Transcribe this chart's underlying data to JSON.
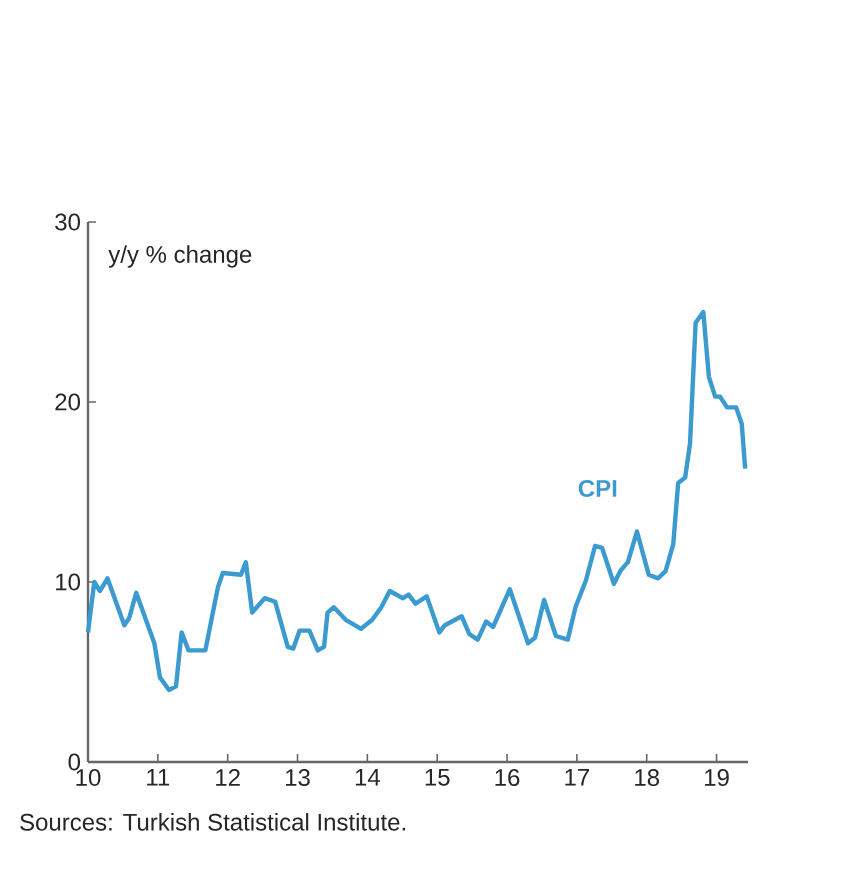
{
  "chart_data": {
    "type": "line",
    "ylabel": "y/y % change",
    "x": [
      2010.0,
      2010.09,
      2010.17,
      2010.28,
      2010.52,
      2010.59,
      2010.69,
      2010.95,
      2011.03,
      2011.16,
      2011.26,
      2011.34,
      2011.44,
      2011.68,
      2011.86,
      2011.93,
      2012.19,
      2012.26,
      2012.35,
      2012.53,
      2012.68,
      2012.86,
      2012.94,
      2013.03,
      2013.17,
      2013.29,
      2013.38,
      2013.43,
      2013.52,
      2013.69,
      2013.91,
      2014.07,
      2014.2,
      2014.32,
      2014.51,
      2014.59,
      2014.69,
      2014.85,
      2015.03,
      2015.11,
      2015.35,
      2015.46,
      2015.58,
      2015.7,
      2015.8,
      2016.04,
      2016.3,
      2016.4,
      2016.53,
      2016.7,
      2016.87,
      2016.98,
      2017.13,
      2017.26,
      2017.36,
      2017.53,
      2017.62,
      2017.73,
      2017.86,
      2018.03,
      2018.16,
      2018.27,
      2018.38,
      2018.45,
      2018.55,
      2018.62,
      2018.7,
      2018.81,
      2018.89,
      2018.98,
      2019.05,
      2019.15,
      2019.28,
      2019.36,
      2019.41
    ],
    "series": [
      {
        "name": "CPI",
        "color": "#3b9ad0",
        "values": [
          7.2,
          10.0,
          9.5,
          10.2,
          7.6,
          8.0,
          9.4,
          6.6,
          4.7,
          4.0,
          4.2,
          7.2,
          6.2,
          6.2,
          9.7,
          10.5,
          10.4,
          11.1,
          8.3,
          9.1,
          8.9,
          6.4,
          6.3,
          7.3,
          7.3,
          6.2,
          6.4,
          8.3,
          8.6,
          7.9,
          7.4,
          7.9,
          8.6,
          9.5,
          9.1,
          9.3,
          8.8,
          9.2,
          7.2,
          7.6,
          8.1,
          7.1,
          6.8,
          7.8,
          7.5,
          9.6,
          6.6,
          6.9,
          9.0,
          7.0,
          6.8,
          8.6,
          10.1,
          12.0,
          11.9,
          9.9,
          10.6,
          11.1,
          12.8,
          10.4,
          10.2,
          10.6,
          12.1,
          15.5,
          15.8,
          17.7,
          24.4,
          25.0,
          21.4,
          20.3,
          20.3,
          19.7,
          19.7,
          18.8,
          16.3
        ]
      }
    ],
    "xlim": [
      2010,
      2019.45
    ],
    "ylim": [
      0,
      30
    ],
    "xticks": [
      {
        "value": 2010,
        "label": "10"
      },
      {
        "value": 2011,
        "label": "11"
      },
      {
        "value": 2012,
        "label": "12"
      },
      {
        "value": 2013,
        "label": "13"
      },
      {
        "value": 2014,
        "label": "14"
      },
      {
        "value": 2015,
        "label": "15"
      },
      {
        "value": 2016,
        "label": "16"
      },
      {
        "value": 2017,
        "label": "17"
      },
      {
        "value": 2018,
        "label": "18"
      },
      {
        "value": 2019,
        "label": "19"
      }
    ],
    "yticks": [
      0,
      10,
      20,
      30
    ],
    "annotations": [
      "Sources: Turkish Statistical Institute."
    ],
    "grid": false,
    "legend": false,
    "marker": "none",
    "line_style": "solid"
  }
}
